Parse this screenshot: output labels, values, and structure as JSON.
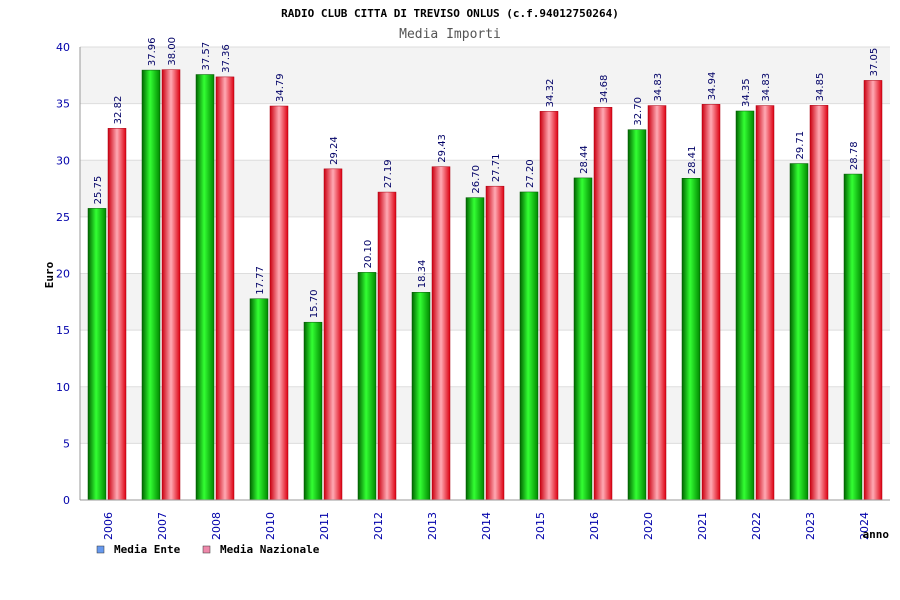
{
  "chart_data": {
    "type": "bar",
    "title": "RADIO CLUB CITTA DI TREVISO ONLUS (c.f.94012750264)",
    "subtitle": "Media Importi",
    "ylabel": "Euro",
    "xlabel": "anno",
    "ylim": [
      0,
      40
    ],
    "yticks": [
      "0",
      "5",
      "10",
      "15",
      "20",
      "25",
      "30",
      "35",
      "40"
    ],
    "grid": true,
    "legend_position": "bottom-left",
    "categories": [
      "2006",
      "2007",
      "2008",
      "2010",
      "2011",
      "2012",
      "2013",
      "2014",
      "2015",
      "2016",
      "2020",
      "2021",
      "2022",
      "2023",
      "2024"
    ],
    "series": [
      {
        "name": "Media Ente",
        "color": "#00aa00",
        "legend_color": "#6699ee",
        "values": [
          25.75,
          37.96,
          37.57,
          17.77,
          15.7,
          20.1,
          18.34,
          26.7,
          27.2,
          28.44,
          32.7,
          28.41,
          34.35,
          29.71,
          28.78
        ],
        "labels": [
          "25.75",
          "37.96",
          "37.57",
          "17.77",
          "15.70",
          "20.10",
          "18.34",
          "26.70",
          "27.20",
          "28.44",
          "32.70",
          "28.41",
          "34.35",
          "29.71",
          "28.78"
        ]
      },
      {
        "name": "Media Nazionale",
        "color": "#ee2233",
        "legend_color": "#ee88aa",
        "values": [
          32.82,
          38.0,
          37.36,
          34.79,
          29.24,
          27.19,
          29.43,
          27.71,
          34.32,
          34.68,
          34.83,
          34.94,
          34.83,
          34.85,
          37.05
        ],
        "labels": [
          "32.82",
          "38.00",
          "37.36",
          "34.79",
          "29.24",
          "27.19",
          "29.43",
          "27.71",
          "34.32",
          "34.68",
          "34.83",
          "34.94",
          "34.83",
          "34.85",
          "37.05"
        ]
      }
    ]
  }
}
